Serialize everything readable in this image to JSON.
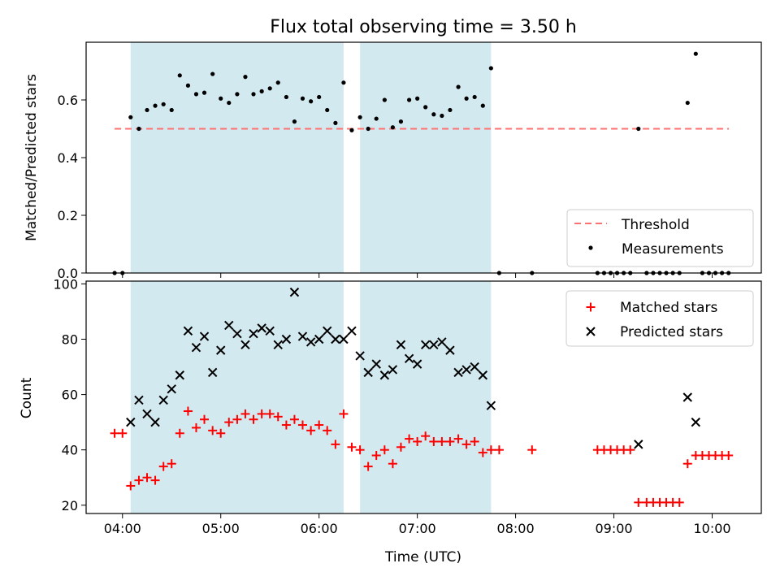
{
  "chart_data": {
    "title": "Flux total observing time = 3.50 h",
    "type": "scatter",
    "x_unit": "hours (UTC)",
    "xlim": [
      3.63,
      10.5
    ],
    "xtick_labels": [
      "04:00",
      "05:00",
      "06:00",
      "07:00",
      "08:00",
      "09:00",
      "10:00"
    ],
    "xlabel": "Time (UTC)",
    "shaded_intervals": [
      [
        4.083,
        6.25
      ],
      [
        6.417,
        7.75
      ]
    ],
    "shade_color": "#d3e9f0",
    "panels": [
      {
        "ylabel": "Matched/Predicted stars",
        "ylim": [
          0,
          0.8
        ],
        "yticks": [
          0.0,
          0.2,
          0.4,
          0.6
        ],
        "ytick_labels": [
          "0.0",
          "0.2",
          "0.4",
          "0.6"
        ],
        "threshold": {
          "name": "Threshold",
          "value": 0.5,
          "x_range": [
            3.92,
            10.17
          ],
          "color": "#ff7070"
        },
        "series": [
          {
            "name": "Measurements",
            "marker": "dot",
            "color": "#000000",
            "x": [
              3.92,
              4.0,
              4.083,
              4.167,
              4.25,
              4.333,
              4.417,
              4.5,
              4.583,
              4.667,
              4.75,
              4.833,
              4.917,
              5.0,
              5.083,
              5.167,
              5.25,
              5.333,
              5.417,
              5.5,
              5.583,
              5.667,
              5.75,
              5.833,
              5.917,
              6.0,
              6.083,
              6.167,
              6.25,
              6.333,
              6.417,
              6.5,
              6.583,
              6.667,
              6.75,
              6.833,
              6.917,
              7.0,
              7.083,
              7.167,
              7.25,
              7.333,
              7.417,
              7.5,
              7.583,
              7.667,
              7.75,
              7.833,
              8.167,
              8.833,
              8.9,
              8.967,
              9.033,
              9.1,
              9.167,
              9.25,
              9.333,
              9.4,
              9.467,
              9.533,
              9.6,
              9.667,
              9.75,
              9.833,
              9.9,
              9.967,
              10.033,
              10.1,
              10.167
            ],
            "y": [
              0.0,
              0.0,
              0.54,
              0.5,
              0.565,
              0.58,
              0.585,
              0.565,
              0.685,
              0.65,
              0.62,
              0.625,
              0.69,
              0.605,
              0.59,
              0.62,
              0.68,
              0.62,
              0.63,
              0.64,
              0.66,
              0.61,
              0.525,
              0.605,
              0.595,
              0.61,
              0.565,
              0.52,
              0.66,
              0.495,
              0.54,
              0.5,
              0.535,
              0.6,
              0.505,
              0.525,
              0.6,
              0.605,
              0.575,
              0.55,
              0.545,
              0.565,
              0.645,
              0.605,
              0.61,
              0.58,
              0.71,
              0.0,
              0.0,
              0.0,
              0.0,
              0.0,
              0.0,
              0.0,
              0.0,
              0.5,
              0.0,
              0.0,
              0.0,
              0.0,
              0.0,
              0.0,
              0.59,
              0.76,
              0.0,
              0.0,
              0.0,
              0.0,
              0.0
            ]
          }
        ],
        "legend": [
          "Threshold",
          "Measurements"
        ],
        "legend_position": "lower-right"
      },
      {
        "ylabel": "Count",
        "ylim": [
          17,
          101
        ],
        "yticks": [
          20,
          40,
          60,
          80,
          100
        ],
        "ytick_labels": [
          "20",
          "40",
          "60",
          "80",
          "100"
        ],
        "series": [
          {
            "name": "Matched stars",
            "marker": "plus",
            "color": "#ff0000",
            "x": [
              3.92,
              4.0,
              4.083,
              4.167,
              4.25,
              4.333,
              4.417,
              4.5,
              4.583,
              4.667,
              4.75,
              4.833,
              4.917,
              5.0,
              5.083,
              5.167,
              5.25,
              5.333,
              5.417,
              5.5,
              5.583,
              5.667,
              5.75,
              5.833,
              5.917,
              6.0,
              6.083,
              6.167,
              6.25,
              6.333,
              6.417,
              6.5,
              6.583,
              6.667,
              6.75,
              6.833,
              6.917,
              7.0,
              7.083,
              7.167,
              7.25,
              7.333,
              7.417,
              7.5,
              7.583,
              7.667,
              7.75,
              7.833,
              8.167,
              8.833,
              8.9,
              8.967,
              9.033,
              9.1,
              9.167,
              9.25,
              9.333,
              9.4,
              9.467,
              9.533,
              9.6,
              9.667,
              9.75,
              9.833,
              9.9,
              9.967,
              10.033,
              10.1,
              10.167
            ],
            "y": [
              46,
              46,
              27,
              29,
              30,
              29,
              34,
              35,
              46,
              54,
              48,
              51,
              47,
              46,
              50,
              51,
              53,
              51,
              53,
              53,
              52,
              49,
              51,
              49,
              47,
              49,
              47,
              42,
              53,
              41,
              40,
              34,
              38,
              40,
              35,
              41,
              44,
              43,
              45,
              43,
              43,
              43,
              44,
              42,
              43,
              39,
              40,
              40,
              40,
              40,
              40,
              40,
              40,
              40,
              40,
              21,
              21,
              21,
              21,
              21,
              21,
              21,
              35,
              38,
              38,
              38,
              38,
              38,
              38
            ]
          },
          {
            "name": "Predicted stars",
            "marker": "x",
            "color": "#000000",
            "x": [
              4.083,
              4.167,
              4.25,
              4.333,
              4.417,
              4.5,
              4.583,
              4.667,
              4.75,
              4.833,
              4.917,
              5.0,
              5.083,
              5.167,
              5.25,
              5.333,
              5.417,
              5.5,
              5.583,
              5.667,
              5.75,
              5.833,
              5.917,
              6.0,
              6.083,
              6.167,
              6.25,
              6.333,
              6.417,
              6.5,
              6.583,
              6.667,
              6.75,
              6.833,
              6.917,
              7.0,
              7.083,
              7.167,
              7.25,
              7.333,
              7.417,
              7.5,
              7.583,
              7.667,
              7.75,
              9.25,
              9.75,
              9.833
            ],
            "y": [
              50,
              58,
              53,
              50,
              58,
              62,
              67,
              83,
              77,
              81,
              68,
              76,
              85,
              82,
              78,
              82,
              84,
              83,
              78,
              80,
              97,
              81,
              79,
              80,
              83,
              80,
              80,
              83,
              74,
              68,
              71,
              67,
              69,
              78,
              73,
              71,
              78,
              78,
              79,
              76,
              68,
              69,
              70,
              67,
              56,
              42,
              59,
              50
            ]
          }
        ],
        "legend": [
          "Matched stars",
          "Predicted stars"
        ],
        "legend_position": "upper-right"
      }
    ]
  }
}
